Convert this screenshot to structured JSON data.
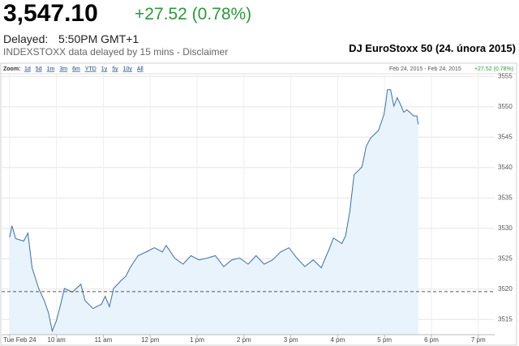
{
  "header": {
    "price": "3,547.10",
    "change": "+27.52 (0.78%)",
    "delayed_label": "Delayed:",
    "time": "5:50PM GMT+1",
    "source": "INDEXSTOXX data delayed by 15 mins - Disclaimer",
    "title": "DJ EuroStoxx 50 (24. února 2015)"
  },
  "zoom": {
    "label": "Zoom:",
    "options": [
      "1d",
      "5d",
      "1m",
      "3m",
      "6m",
      "YTD",
      "1y",
      "5y",
      "10y",
      "All"
    ],
    "range": "Feb 24, 2015 - Feb 24, 2015",
    "change": "+27.52 (0.78%)"
  },
  "chart_data": {
    "type": "area",
    "color": "#3d6ea8",
    "fill": "#e8f3fc",
    "grid": true,
    "x": [
      9.0,
      9.05,
      9.13,
      9.3,
      9.39,
      9.48,
      9.62,
      9.74,
      9.83,
      9.91,
      10.0,
      10.09,
      10.17,
      10.34,
      10.52,
      10.61,
      10.78,
      10.96,
      11.04,
      11.13,
      11.22,
      11.39,
      11.48,
      11.57,
      11.74,
      11.91,
      12.09,
      12.26,
      12.34,
      12.52,
      12.7,
      12.87,
      13.04,
      13.22,
      13.39,
      13.57,
      13.74,
      13.91,
      14.09,
      14.26,
      14.43,
      14.61,
      14.78,
      14.96,
      15.13,
      15.3,
      15.48,
      15.65,
      15.83,
      15.91,
      16.09,
      16.17,
      16.26,
      16.35,
      16.52,
      16.61,
      16.7,
      16.87,
      16.96,
      16.99,
      17.03,
      17.06,
      17.13,
      17.2,
      17.27,
      17.34,
      17.41,
      17.48,
      17.62,
      17.69,
      17.72
    ],
    "values": [
      3528.5,
      3530.4,
      3528.3,
      3527.9,
      3529.2,
      3523.5,
      3520.1,
      3518.1,
      3516.1,
      3513.1,
      3514.8,
      3517.5,
      3520.1,
      3519.5,
      3520.8,
      3518.1,
      3516.8,
      3517.5,
      3518.8,
      3517.1,
      3520.1,
      3521.5,
      3522.1,
      3523.5,
      3525.5,
      3526.1,
      3526.8,
      3526.1,
      3527.2,
      3525.1,
      3524.1,
      3525.5,
      3524.8,
      3525.1,
      3525.5,
      3523.7,
      3524.8,
      3525.1,
      3524.1,
      3525.5,
      3524.1,
      3524.8,
      3526.1,
      3526.8,
      3525.1,
      3523.7,
      3524.8,
      3523.5,
      3526.8,
      3528.4,
      3527.5,
      3528.8,
      3532.8,
      3538.8,
      3540.1,
      3543.5,
      3544.8,
      3546.1,
      3548.1,
      3548.8,
      3550.8,
      3552.8,
      3552.8,
      3550.1,
      3551.5,
      3550.4,
      3549.1,
      3549.5,
      3548.5,
      3548.5,
      3547.1
    ],
    "reference_line": 3519.58,
    "xlim": [
      8.83,
      19.35
    ],
    "xticks": [
      {
        "value": 9,
        "label": "Tue Feb 24"
      },
      {
        "value": 10,
        "label": "10 am"
      },
      {
        "value": 11,
        "label": "11 am"
      },
      {
        "value": 12,
        "label": "12 pm"
      },
      {
        "value": 13,
        "label": "1 pm"
      },
      {
        "value": 14,
        "label": "2 pm"
      },
      {
        "value": 15,
        "label": "3 pm"
      },
      {
        "value": 16,
        "label": "4 pm"
      },
      {
        "value": 17,
        "label": "5 pm"
      },
      {
        "value": 18,
        "label": "6 pm"
      },
      {
        "value": 19,
        "label": "7 pm"
      }
    ],
    "ylim": [
      3512.5,
      3555.3
    ],
    "yticks": [
      3515,
      3520,
      3525,
      3530,
      3535,
      3540,
      3545,
      3550,
      3555
    ]
  }
}
